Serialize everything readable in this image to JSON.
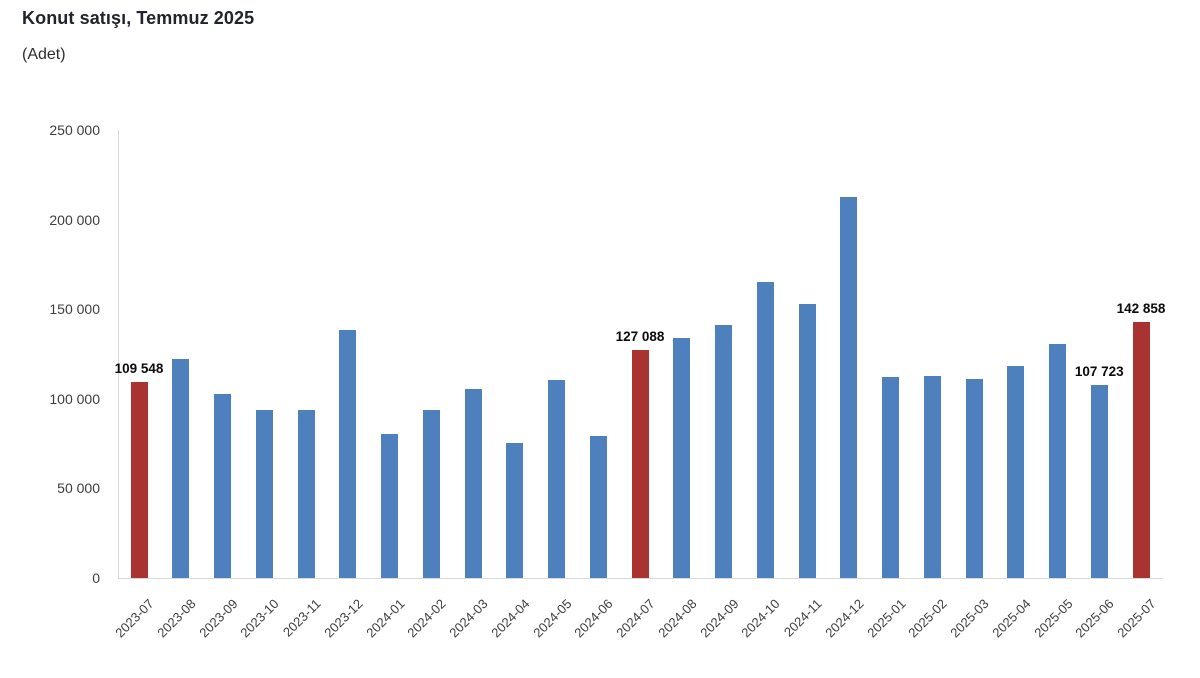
{
  "header": {
    "title": "Konut satışı, Temmuz 2025",
    "subtitle": "(Adet)"
  },
  "chart_data": {
    "type": "bar",
    "title": "Konut satışı, Temmuz 2025",
    "xlabel": "",
    "ylabel": "Adet",
    "ylim": [
      0,
      250000
    ],
    "grid": false,
    "legend": "none",
    "categories": [
      "2023-07",
      "2023-08",
      "2023-09",
      "2023-10",
      "2023-11",
      "2023-12",
      "2024-01",
      "2024-02",
      "2024-03",
      "2024-04",
      "2024-05",
      "2024-06",
      "2024-07",
      "2024-08",
      "2024-09",
      "2024-10",
      "2024-11",
      "2024-12",
      "2025-01",
      "2025-02",
      "2025-03",
      "2025-04",
      "2025-05",
      "2025-06",
      "2025-07"
    ],
    "values": [
      109548,
      122091,
      102656,
      93761,
      93514,
      138577,
      80308,
      93902,
      105476,
      75569,
      110588,
      79313,
      127088,
      134155,
      140919,
      165138,
      153014,
      212637,
      112173,
      112818,
      110795,
      118359,
      130423,
      107723,
      142858
    ],
    "highlight_indices": [
      0,
      12,
      24
    ],
    "labeled_points": [
      {
        "index": 0,
        "label": "109 548"
      },
      {
        "index": 12,
        "label": "127 088"
      },
      {
        "index": 23,
        "label": "107 723"
      },
      {
        "index": 24,
        "label": "142 858"
      }
    ],
    "yticks": [
      0,
      50000,
      100000,
      150000,
      200000,
      250000
    ],
    "ytick_labels": [
      "0",
      "50 000",
      "100 000",
      "150 000",
      "200 000",
      "250 000"
    ],
    "colors": {
      "bar": "#4d80bc",
      "highlight": "#a93330",
      "axis_line": "#d9d9d9",
      "tick_text": "#3d3d3d",
      "value_label_text": "#0b0b0b",
      "title_text": "#20242b"
    }
  }
}
